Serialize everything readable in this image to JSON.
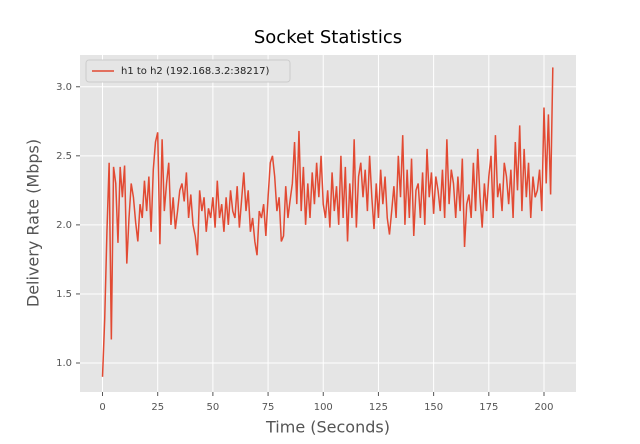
{
  "chart_data": {
    "type": "line",
    "title": "Socket Statistics",
    "xlabel": "Time (Seconds)",
    "ylabel": "Delivery Rate (Mbps)",
    "x": [
      0,
      1,
      2,
      3,
      4,
      5,
      6,
      7,
      8,
      9,
      10,
      11,
      12,
      13,
      14,
      15,
      16,
      17,
      18,
      19,
      20,
      21,
      22,
      23,
      24,
      25,
      26,
      27,
      28,
      29,
      30,
      31,
      32,
      33,
      34,
      35,
      36,
      37,
      38,
      39,
      40,
      41,
      42,
      43,
      44,
      45,
      46,
      47,
      48,
      49,
      50,
      51,
      52,
      53,
      54,
      55,
      56,
      57,
      58,
      59,
      60,
      61,
      62,
      63,
      64,
      65,
      66,
      67,
      68,
      69,
      70,
      71,
      72,
      73,
      74,
      75,
      76,
      77,
      78,
      79,
      80,
      81,
      82,
      83,
      84,
      85,
      86,
      87,
      88,
      89,
      90,
      91,
      92,
      93,
      94,
      95,
      96,
      97,
      98,
      99,
      100,
      101,
      102,
      103,
      104,
      105,
      106,
      107,
      108,
      109,
      110,
      111,
      112,
      113,
      114,
      115,
      116,
      117,
      118,
      119,
      120,
      121,
      122,
      123,
      124,
      125,
      126,
      127,
      128,
      129,
      130,
      131,
      132,
      133,
      134,
      135,
      136,
      137,
      138,
      139,
      140,
      141,
      142,
      143,
      144,
      145,
      146,
      147,
      148,
      149,
      150,
      151,
      152,
      153,
      154,
      155,
      156,
      157,
      158,
      159,
      160,
      161,
      162,
      163,
      164,
      165,
      166,
      167,
      168,
      169,
      170,
      171,
      172,
      173,
      174,
      175,
      176,
      177,
      178,
      179,
      180,
      181,
      182,
      183,
      184,
      185,
      186,
      187,
      188,
      189,
      190,
      191,
      192,
      193,
      194,
      195,
      196,
      197,
      198,
      199,
      200,
      201,
      202,
      203,
      204
    ],
    "series": [
      {
        "name": "h1 to h2 (192.168.3.2:38217)",
        "color": "#E24A33",
        "values": [
          0.9,
          1.32,
          1.95,
          2.45,
          1.17,
          2.42,
          2.3,
          1.87,
          2.42,
          2.2,
          2.43,
          1.72,
          2.05,
          2.3,
          2.2,
          2.02,
          1.88,
          2.15,
          2.05,
          2.32,
          2.1,
          2.35,
          1.95,
          2.4,
          2.6,
          2.67,
          1.86,
          2.62,
          2.1,
          2.3,
          2.45,
          2.0,
          2.2,
          1.97,
          2.1,
          2.25,
          2.3,
          2.17,
          2.38,
          2.05,
          2.22,
          2.0,
          1.92,
          1.78,
          2.25,
          2.1,
          2.2,
          1.95,
          2.12,
          2.05,
          2.2,
          1.98,
          2.32,
          2.05,
          2.15,
          1.95,
          2.2,
          2.0,
          2.25,
          2.1,
          2.05,
          2.28,
          1.98,
          2.18,
          2.38,
          2.1,
          2.25,
          1.95,
          2.05,
          1.88,
          1.78,
          2.1,
          2.05,
          2.15,
          1.92,
          2.2,
          2.45,
          2.5,
          2.35,
          2.1,
          2.2,
          1.88,
          1.92,
          2.28,
          2.05,
          2.18,
          2.3,
          2.6,
          2.15,
          2.68,
          2.1,
          2.42,
          2.0,
          2.3,
          2.05,
          2.38,
          2.15,
          2.45,
          2.2,
          2.5,
          2.15,
          2.05,
          2.25,
          1.98,
          2.38,
          2.1,
          2.28,
          2.0,
          2.5,
          2.05,
          2.42,
          1.88,
          2.3,
          2.05,
          2.62,
          1.98,
          2.35,
          2.45,
          2.2,
          2.4,
          2.1,
          2.5,
          2.2,
          1.97,
          2.3,
          2.05,
          2.4,
          2.15,
          2.35,
          2.05,
          1.93,
          2.1,
          2.28,
          2.05,
          2.5,
          2.2,
          2.65,
          2.0,
          2.4,
          2.05,
          2.48,
          1.92,
          2.25,
          2.3,
          2.05,
          2.38,
          2.0,
          2.55,
          2.2,
          2.38,
          2.08,
          2.35,
          2.25,
          2.1,
          2.4,
          2.05,
          2.62,
          2.15,
          2.4,
          2.3,
          2.05,
          2.35,
          2.1,
          2.48,
          1.84,
          2.15,
          2.22,
          2.05,
          2.45,
          2.1,
          2.55,
          2.2,
          1.98,
          2.3,
          2.1,
          2.35,
          2.5,
          2.05,
          2.65,
          2.2,
          2.3,
          2.1,
          2.45,
          2.35,
          2.15,
          2.4,
          2.05,
          2.6,
          2.25,
          2.72,
          2.1,
          2.55,
          2.2,
          2.45,
          2.05,
          2.35,
          2.2,
          2.25,
          2.4,
          2.1,
          2.85,
          2.3,
          2.8,
          2.22,
          3.14
        ]
      }
    ],
    "xlim": [
      -10.2,
      214.5
    ],
    "ylim": [
      0.79,
      3.23
    ],
    "xticks": [
      0,
      25,
      50,
      75,
      100,
      125,
      150,
      175,
      200
    ],
    "yticks": [
      {
        "value": 1,
        "label": "1.0"
      },
      1.5,
      {
        "value": 2,
        "label": "2.0"
      },
      2.5,
      {
        "value": 3,
        "label": "3.0"
      }
    ],
    "grid": true,
    "legend": "upper left"
  }
}
